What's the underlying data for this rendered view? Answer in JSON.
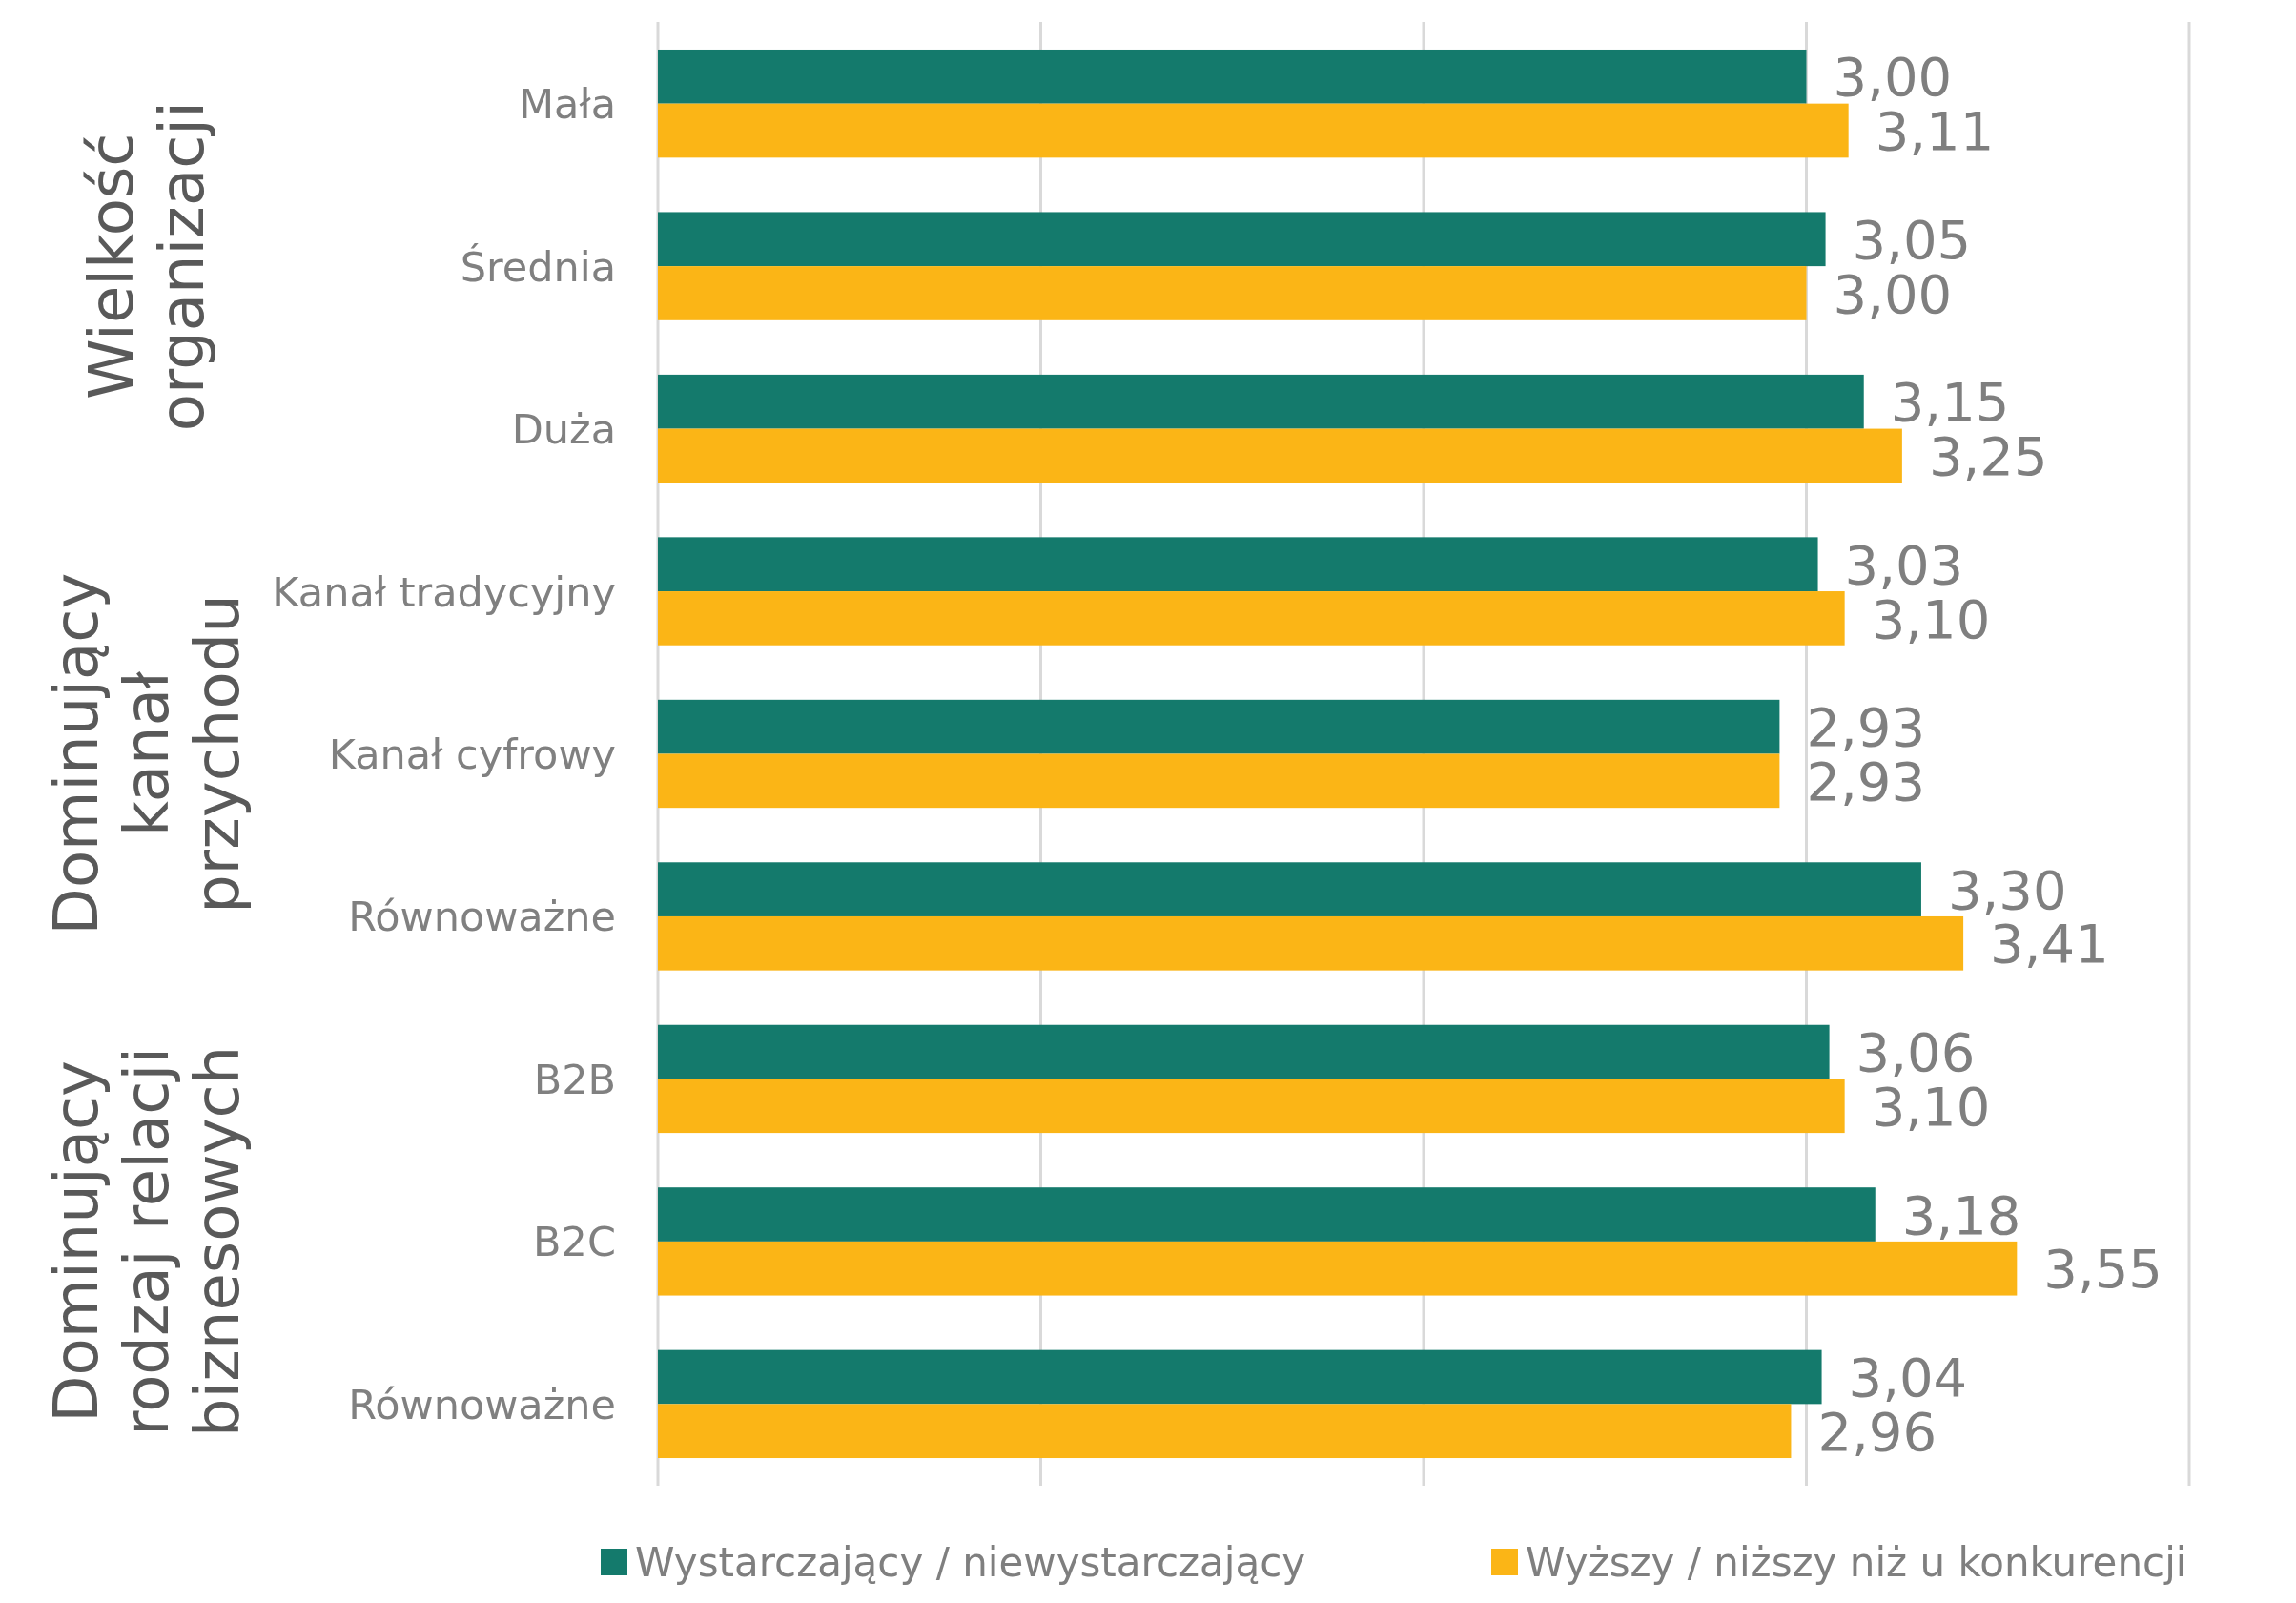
{
  "chart_data": {
    "type": "bar",
    "orientation": "horizontal",
    "categories": [
      "Mała",
      "Średnia",
      "Duża",
      "Kanał tradycyjny",
      "Kanał cyfrowy",
      "Równoważne",
      "B2B",
      "B2C",
      "Równoważne"
    ],
    "series": [
      {
        "name": "Wystarczający / niewystarczający",
        "color": "#147a6c",
        "values": [
          3.0,
          3.05,
          3.15,
          3.03,
          2.93,
          3.3,
          3.06,
          3.18,
          3.04
        ],
        "value_labels": [
          "3,00",
          "3,05",
          "3,15",
          "3,03",
          "2,93",
          "3,30",
          "3,06",
          "3,18",
          "3,04"
        ]
      },
      {
        "name": "Wyższy / niższy niż u konkurencji",
        "color": "#fbb516",
        "values": [
          3.11,
          3.0,
          3.25,
          3.1,
          2.93,
          3.41,
          3.1,
          3.55,
          2.96
        ],
        "value_labels": [
          "3,11",
          "3,00",
          "3,25",
          "3,10",
          "2,93",
          "3,41",
          "3,10",
          "3,55",
          "2,96"
        ]
      }
    ],
    "xlim": [
      0,
      4
    ],
    "xticks": [
      {
        "value": 0,
        "label": null
      },
      {
        "value": 1,
        "label": null
      },
      {
        "value": 2,
        "label": null
      },
      {
        "value": 3,
        "label": null
      },
      {
        "value": 4,
        "label": null
      }
    ],
    "grid": "x",
    "tick_labels": "y",
    "legend": "bottom",
    "annotations": [
      "Wielkość organizacji",
      "Dominujący kanał przychodu",
      "Dominujący rodzaj relacji biznesowych"
    ]
  }
}
